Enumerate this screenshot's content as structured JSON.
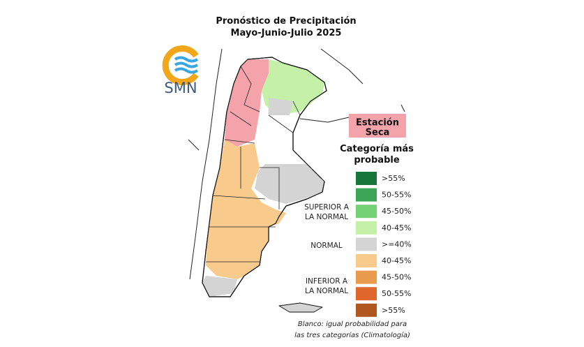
{
  "header": {
    "title": "Pronóstico de Precipitación",
    "subtitle": "Mayo-Junio-Julio 2025"
  },
  "logo": {
    "text": "SMN"
  },
  "badge": {
    "line1": "Estación",
    "line2": "Seca"
  },
  "legend": {
    "title_line1": "Categoría más",
    "title_line2": "probable",
    "groups": [
      {
        "label_line1": "SUPERIOR A",
        "label_line2": "LA NORMAL",
        "items": [
          {
            "label": ">55%",
            "color": "#17773a"
          },
          {
            "label": "50-55%",
            "color": "#3ba656"
          },
          {
            "label": "45-50%",
            "color": "#74d174"
          },
          {
            "label": "40-45%",
            "color": "#c4f0a8"
          }
        ]
      },
      {
        "label_line1": "NORMAL",
        "items": [
          {
            "label": ">=40%",
            "color": "#d4d4d4"
          }
        ]
      },
      {
        "label_line1": "INFERIOR A",
        "label_line2": "LA NORMAL",
        "items": [
          {
            "label": "40-45%",
            "color": "#f8ca8c"
          },
          {
            "label": "45-50%",
            "color": "#ea9a4c"
          },
          {
            "label": "50-55%",
            "color": "#e0672b"
          },
          {
            "label": ">55%",
            "color": "#b1561f"
          }
        ]
      }
    ]
  },
  "footnote": {
    "line1": "Blanco: igual probabilidad para",
    "line2": "las tres categorías (Climatología)"
  }
}
